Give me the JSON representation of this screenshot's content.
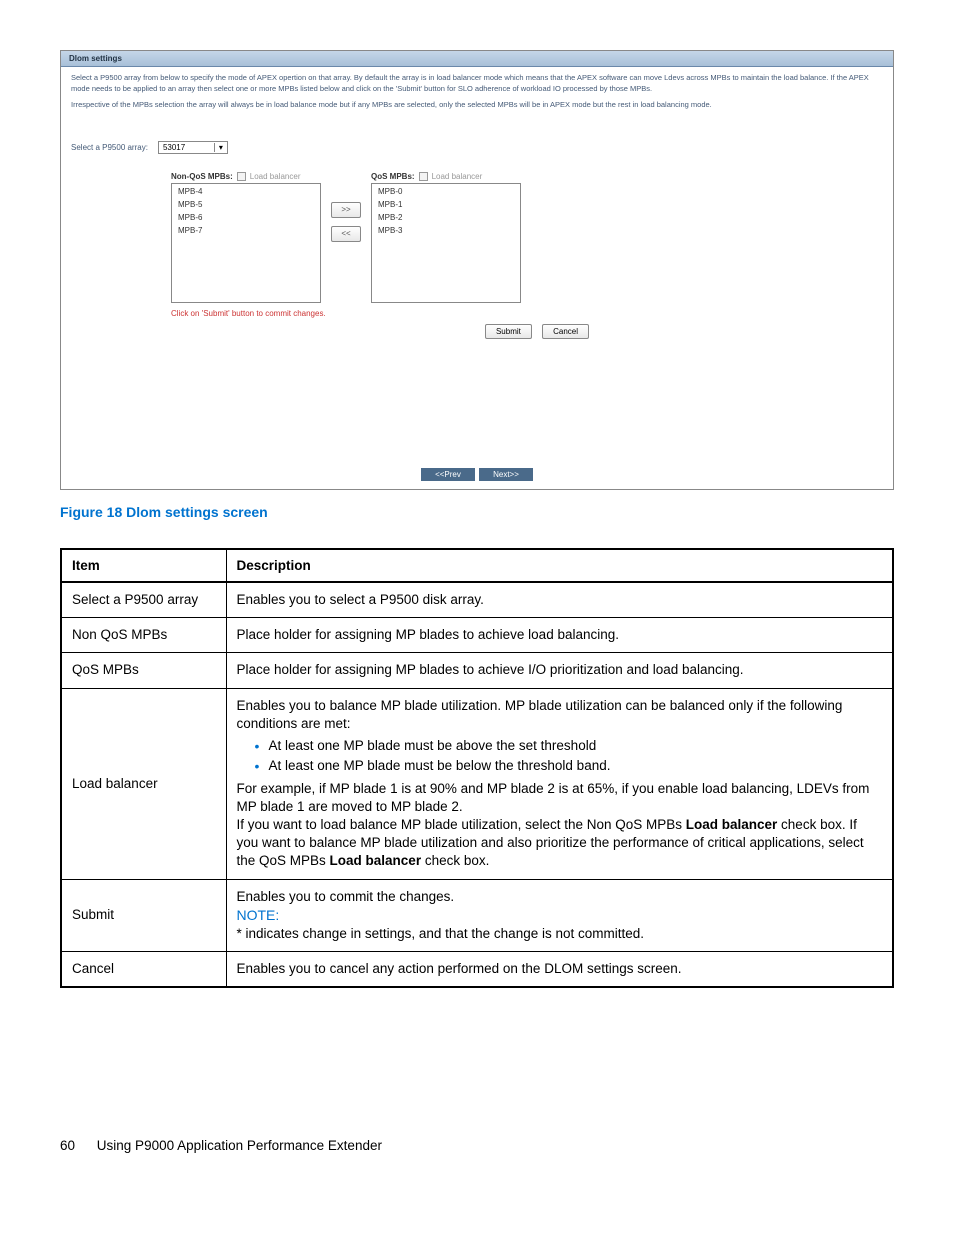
{
  "screenshot": {
    "header": "Dlom settings",
    "para1": "Select a P9500 array from below to specify the mode of APEX opertion on that array. By default the array is in load balancer mode which means that the APEX software can move Ldevs across MPBs to maintain the load balance. If the APEX mode needs to be applied to an array then select one or more MPBs listed below and click on the 'Submit' button for SLO adherence of workload IO processed by those MPBs.",
    "para2": "Irrespective of the MPBs selection the array will always be in load balance mode but if any MPBs are selected, only the selected MPBs will be in APEX mode but the rest in load balancing mode.",
    "selectLabel": "Select a P9500 array:",
    "selectValue": "53017",
    "nonQosLabel": "Non-QoS MPBs:",
    "qosLabel": "QoS MPBs:",
    "loadBalancerLabel": "Load balancer",
    "nonQosItems": [
      "MPB-4",
      "MPB-5",
      "MPB-6",
      "MPB-7"
    ],
    "qosItems": [
      "MPB-0",
      "MPB-1",
      "MPB-2",
      "MPB-3"
    ],
    "moveRight": ">>",
    "moveLeft": "<<",
    "commitMsg": "Click on 'Submit' button to commit changes.",
    "submitBtn": "Submit",
    "cancelBtn": "Cancel",
    "prevBtn": "<<Prev",
    "nextBtn": "Next>>"
  },
  "figureCaption": "Figure 18 Dlom settings screen",
  "table": {
    "headItem": "Item",
    "headDesc": "Description",
    "rows": {
      "r1i": "Select a P9500 array",
      "r1d": "Enables you to select a P9500 disk array.",
      "r2i": "Non QoS MPBs",
      "r2d": "Place holder for assigning MP blades to achieve load balancing.",
      "r3i": "QoS MPBs",
      "r3d": "Place holder for assigning MP blades to achieve I/O prioritization and load balancing.",
      "r4i": "Load balancer",
      "r4d1": "Enables you to balance MP blade utilization. MP blade utilization can be balanced only if the following conditions are met:",
      "r4b1": "At least one MP blade must be above the set threshold",
      "r4b2": "At least one MP blade must be below the threshold band.",
      "r4d2": "For example, if MP blade 1 is at 90% and MP blade 2 is at 65%, if you enable load balancing, LDEVs from MP blade 1 are moved to MP blade 2.",
      "r4d3a": "If you want to load balance MP blade utilization, select the Non QoS MPBs ",
      "r4d3b": "Load balancer",
      "r4d3c": " check box. If you want to balance MP blade utilization and also prioritize the performance of critical applications, select the QoS MPBs ",
      "r4d3d": "Load balancer",
      "r4d3e": " check box.",
      "r5i": "Submit",
      "r5d1": "Enables you to commit the changes.",
      "r5note": "NOTE:",
      "r5d2": "* indicates change in settings, and that the change is not committed.",
      "r6i": "Cancel",
      "r6d": "Enables you to cancel any action performed on the DLOM settings screen."
    }
  },
  "footer": {
    "page": "60",
    "text": "Using P9000 Application Performance Extender"
  }
}
